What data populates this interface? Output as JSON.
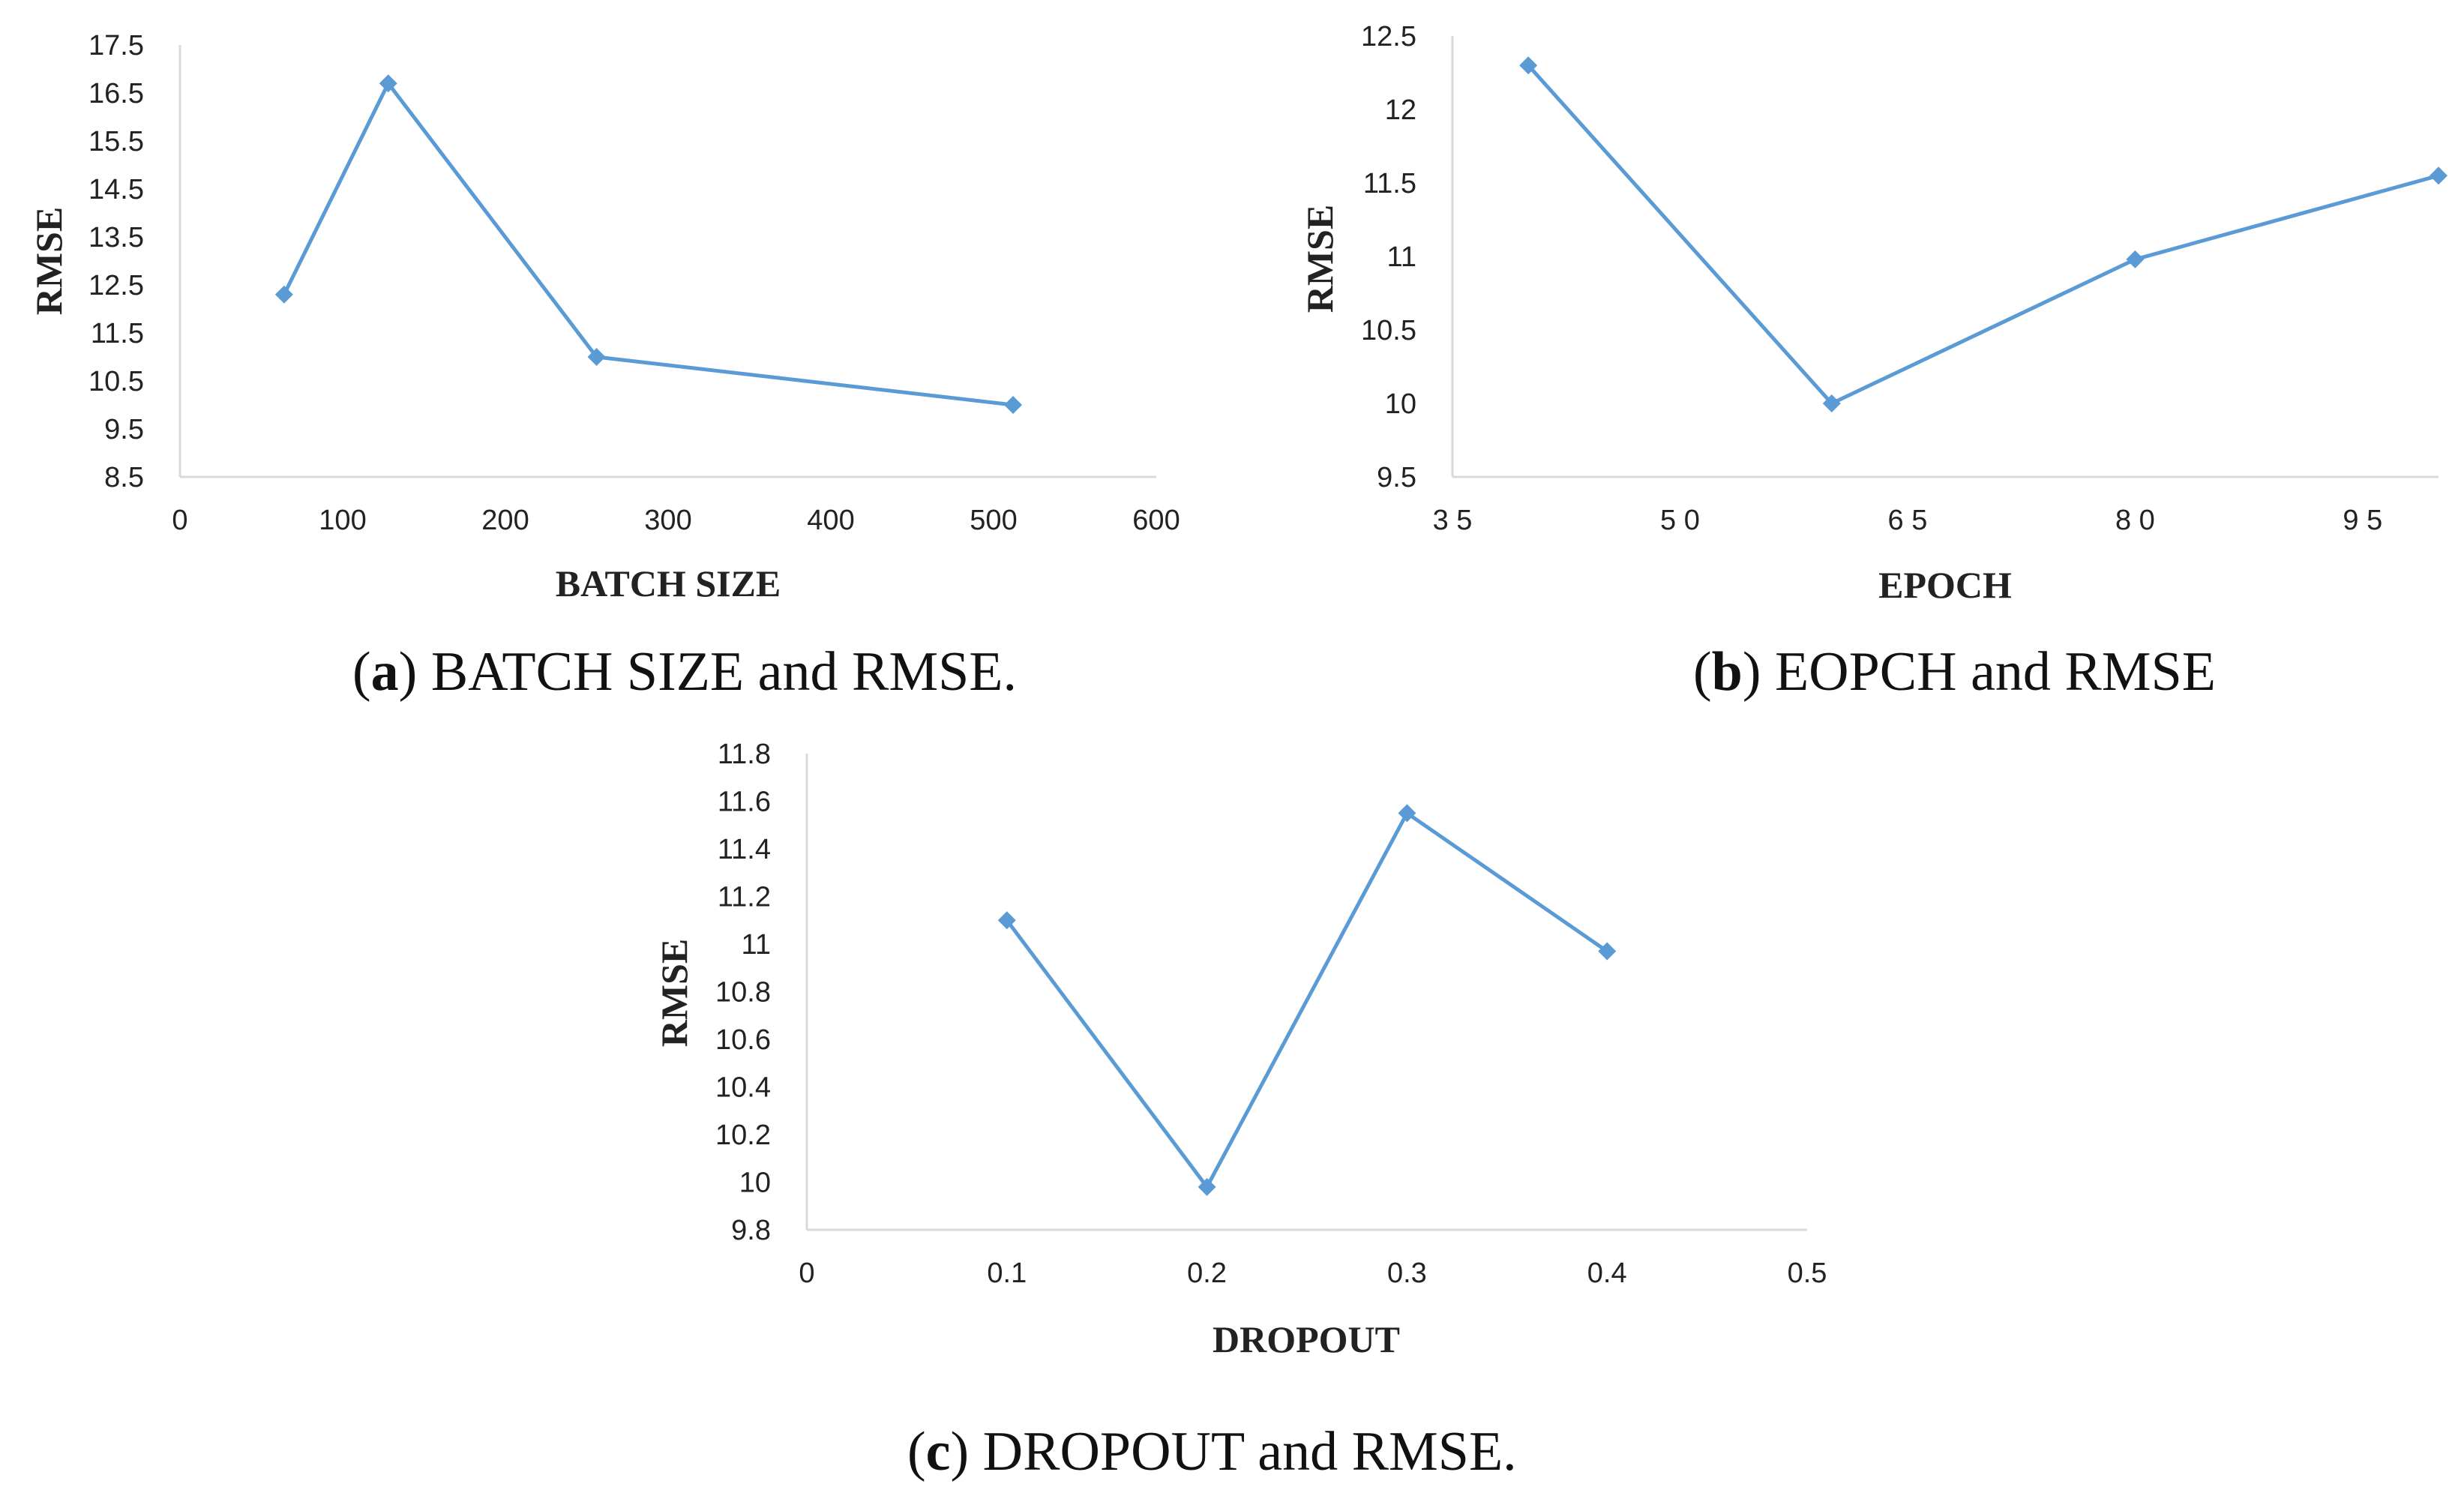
{
  "colors": {
    "series": "#5B9BD5",
    "axis": "#d9d9d9",
    "text": "#222222"
  },
  "marker": "diamond",
  "chart_data": [
    {
      "type": "line",
      "panel": "a",
      "caption_letter": "a",
      "caption_text": " BATCH SIZE and RMSE.",
      "xlabel": "BATCH SIZE",
      "ylabel": "RMSE",
      "xlim": [
        0,
        600
      ],
      "ylim": [
        8.5,
        17.5
      ],
      "xticks": [
        0,
        100,
        200,
        300,
        400,
        500,
        600
      ],
      "xtick_labels": [
        "0",
        "100",
        "200",
        "300",
        "400",
        "500",
        "600"
      ],
      "yticks": [
        8.5,
        9.5,
        10.5,
        11.5,
        12.5,
        13.5,
        14.5,
        15.5,
        16.5,
        17.5
      ],
      "ytick_labels": [
        "8.5",
        "9.5",
        "10.5",
        "11.5",
        "12.5",
        "13.5",
        "14.5",
        "15.5",
        "16.5",
        "17.5"
      ],
      "series": [
        {
          "name": "RMSE",
          "x": [
            64,
            128,
            256,
            512
          ],
          "y": [
            12.3,
            16.7,
            11.0,
            10.0
          ]
        }
      ]
    },
    {
      "type": "line",
      "panel": "b",
      "caption_letter": "b",
      "caption_text": " EOPCH and RMSE",
      "xlabel": "EPOCH",
      "ylabel": "RMSE",
      "xlim": [
        35,
        100
      ],
      "ylim": [
        9.5,
        12.5
      ],
      "xticks": [
        35,
        50,
        65,
        80,
        95
      ],
      "xtick_labels": [
        "3 5",
        "5 0",
        "6 5",
        "8 0",
        "9 5"
      ],
      "yticks": [
        9.5,
        10,
        10.5,
        11,
        11.5,
        12,
        12.5
      ],
      "ytick_labels": [
        "9.5",
        "10",
        "10.5",
        "11",
        "11.5",
        "12",
        "12.5"
      ],
      "series": [
        {
          "name": "RMSE",
          "x": [
            40,
            60,
            80,
            100
          ],
          "y": [
            12.3,
            10.0,
            10.98,
            11.55
          ]
        }
      ]
    },
    {
      "type": "line",
      "panel": "c",
      "caption_letter": "c",
      "caption_text": " DROPOUT and RMSE.",
      "xlabel": "DROPOUT",
      "ylabel": "RMSE",
      "xlim": [
        0,
        0.5
      ],
      "ylim": [
        9.8,
        11.8
      ],
      "xticks": [
        0,
        0.1,
        0.2,
        0.3,
        0.4,
        0.5
      ],
      "xtick_labels": [
        "0",
        "0.1",
        "0.2",
        "0.3",
        "0.4",
        "0.5"
      ],
      "yticks": [
        9.8,
        10,
        10.2,
        10.4,
        10.6,
        10.8,
        11,
        11.2,
        11.4,
        11.6,
        11.8
      ],
      "ytick_labels": [
        "9.8",
        "10",
        "10.2",
        "10.4",
        "10.6",
        "10.8",
        "11",
        "11.2",
        "11.4",
        "11.6",
        "11.8"
      ],
      "series": [
        {
          "name": "RMSE",
          "x": [
            0.1,
            0.2,
            0.3,
            0.4
          ],
          "y": [
            11.1,
            9.98,
            11.55,
            10.97
          ]
        }
      ]
    }
  ]
}
